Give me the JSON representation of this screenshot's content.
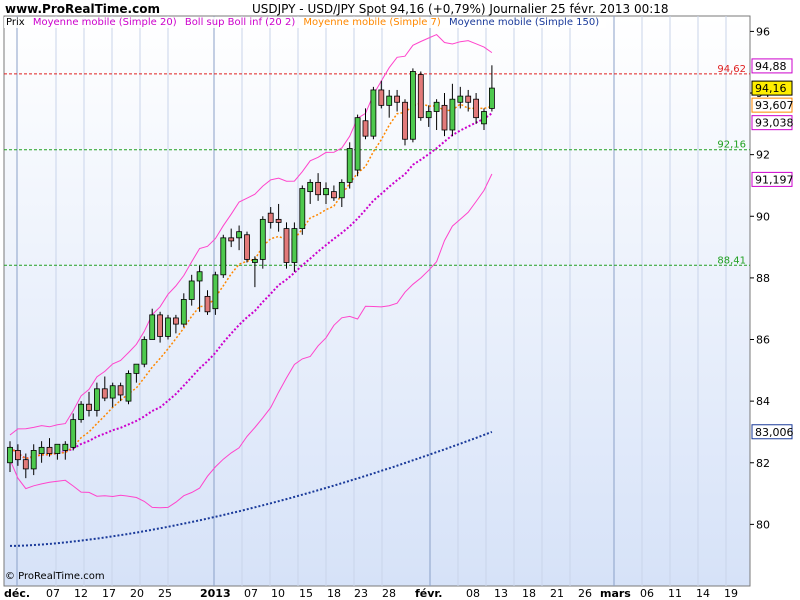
{
  "header": {
    "site": "www.ProRealTime.com",
    "title": "USDJPY - USD/JPY Spot    94,16 (+0,79%)    Journalier  25 févr. 2013 00:18"
  },
  "legend": {
    "items": [
      {
        "label": "Prix",
        "color": "#000000"
      },
      {
        "label": "Moyenne mobile (Simple 20)",
        "color": "#cc00cc"
      },
      {
        "label": "Boll sup Boll inf (20 2)",
        "color": "#cc00cc"
      },
      {
        "label": "Moyenne mobile (Simple 7)",
        "color": "#ff8800"
      },
      {
        "label": "Moyenne mobile (Simple 150)",
        "color": "#1a3a9a"
      }
    ]
  },
  "copyright": "© ProRealTime.com",
  "chart_data": {
    "type": "candlestick",
    "ylim": [
      78,
      96.5
    ],
    "y_ticks": [
      80,
      82,
      84,
      86,
      88,
      90,
      92,
      94,
      96
    ],
    "x_labels": [
      "déc.",
      "07",
      "12",
      "17",
      "20",
      "25",
      "2013",
      "07",
      "10",
      "15",
      "18",
      "23",
      "28",
      "févr.",
      "08",
      "13",
      "18",
      "21",
      "26",
      "mars",
      "06",
      "11",
      "14",
      "19"
    ],
    "candles": [
      {
        "o": 82.0,
        "h": 82.7,
        "l": 81.7,
        "c": 82.5
      },
      {
        "o": 82.4,
        "h": 82.6,
        "l": 81.9,
        "c": 82.1
      },
      {
        "o": 82.1,
        "h": 82.3,
        "l": 81.5,
        "c": 81.8
      },
      {
        "o": 81.8,
        "h": 82.6,
        "l": 81.6,
        "c": 82.4
      },
      {
        "o": 82.3,
        "h": 82.7,
        "l": 82.0,
        "c": 82.5
      },
      {
        "o": 82.5,
        "h": 82.8,
        "l": 82.2,
        "c": 82.3
      },
      {
        "o": 82.3,
        "h": 82.6,
        "l": 82.1,
        "c": 82.6
      },
      {
        "o": 82.4,
        "h": 82.7,
        "l": 82.1,
        "c": 82.6
      },
      {
        "o": 82.5,
        "h": 83.6,
        "l": 82.4,
        "c": 83.4
      },
      {
        "o": 83.4,
        "h": 84.0,
        "l": 83.3,
        "c": 83.9
      },
      {
        "o": 83.9,
        "h": 84.3,
        "l": 83.5,
        "c": 83.7
      },
      {
        "o": 83.7,
        "h": 84.6,
        "l": 83.5,
        "c": 84.4
      },
      {
        "o": 84.4,
        "h": 84.8,
        "l": 84.0,
        "c": 84.1
      },
      {
        "o": 84.1,
        "h": 84.6,
        "l": 83.8,
        "c": 84.5
      },
      {
        "o": 84.5,
        "h": 84.6,
        "l": 84.0,
        "c": 84.2
      },
      {
        "o": 84.0,
        "h": 85.0,
        "l": 83.9,
        "c": 84.9
      },
      {
        "o": 84.9,
        "h": 85.2,
        "l": 84.6,
        "c": 85.2
      },
      {
        "o": 85.2,
        "h": 86.1,
        "l": 85.1,
        "c": 86.0
      },
      {
        "o": 86.0,
        "h": 87.0,
        "l": 86.0,
        "c": 86.8
      },
      {
        "o": 86.8,
        "h": 86.9,
        "l": 85.9,
        "c": 86.1
      },
      {
        "o": 86.1,
        "h": 86.8,
        "l": 86.0,
        "c": 86.7
      },
      {
        "o": 86.7,
        "h": 86.8,
        "l": 86.2,
        "c": 86.5
      },
      {
        "o": 86.5,
        "h": 87.5,
        "l": 86.4,
        "c": 87.3
      },
      {
        "o": 87.3,
        "h": 88.1,
        "l": 87.1,
        "c": 87.9
      },
      {
        "o": 87.9,
        "h": 88.4,
        "l": 86.9,
        "c": 88.2
      },
      {
        "o": 87.4,
        "h": 87.6,
        "l": 86.8,
        "c": 86.9
      },
      {
        "o": 87.0,
        "h": 88.2,
        "l": 86.8,
        "c": 88.1
      },
      {
        "o": 88.1,
        "h": 89.4,
        "l": 88.0,
        "c": 89.3
      },
      {
        "o": 89.3,
        "h": 89.6,
        "l": 89.0,
        "c": 89.2
      },
      {
        "o": 89.3,
        "h": 89.7,
        "l": 88.9,
        "c": 89.5
      },
      {
        "o": 89.4,
        "h": 89.5,
        "l": 88.5,
        "c": 88.6
      },
      {
        "o": 88.5,
        "h": 88.7,
        "l": 87.7,
        "c": 88.6
      },
      {
        "o": 88.6,
        "h": 90.0,
        "l": 88.3,
        "c": 89.9
      },
      {
        "o": 90.1,
        "h": 90.3,
        "l": 89.6,
        "c": 89.8
      },
      {
        "o": 89.9,
        "h": 90.4,
        "l": 89.5,
        "c": 89.8
      },
      {
        "o": 89.6,
        "h": 89.8,
        "l": 88.3,
        "c": 88.5
      },
      {
        "o": 88.5,
        "h": 89.8,
        "l": 88.2,
        "c": 89.6
      },
      {
        "o": 89.6,
        "h": 91.0,
        "l": 89.4,
        "c": 90.9
      },
      {
        "o": 90.8,
        "h": 91.2,
        "l": 90.4,
        "c": 91.1
      },
      {
        "o": 91.1,
        "h": 91.4,
        "l": 90.5,
        "c": 90.7
      },
      {
        "o": 90.7,
        "h": 91.1,
        "l": 90.4,
        "c": 90.9
      },
      {
        "o": 90.8,
        "h": 91.0,
        "l": 90.5,
        "c": 90.6
      },
      {
        "o": 90.6,
        "h": 91.2,
        "l": 90.3,
        "c": 91.1
      },
      {
        "o": 91.1,
        "h": 92.4,
        "l": 90.9,
        "c": 92.2
      },
      {
        "o": 91.5,
        "h": 93.3,
        "l": 91.3,
        "c": 93.2
      },
      {
        "o": 93.1,
        "h": 93.5,
        "l": 92.5,
        "c": 92.6
      },
      {
        "o": 92.6,
        "h": 94.2,
        "l": 92.5,
        "c": 94.1
      },
      {
        "o": 94.1,
        "h": 94.4,
        "l": 93.5,
        "c": 93.6
      },
      {
        "o": 93.6,
        "h": 94.1,
        "l": 93.2,
        "c": 93.9
      },
      {
        "o": 93.9,
        "h": 94.1,
        "l": 93.4,
        "c": 93.7
      },
      {
        "o": 93.7,
        "h": 93.8,
        "l": 92.3,
        "c": 92.5
      },
      {
        "o": 92.5,
        "h": 94.8,
        "l": 92.4,
        "c": 94.7
      },
      {
        "o": 94.6,
        "h": 94.7,
        "l": 93.1,
        "c": 93.2
      },
      {
        "o": 93.2,
        "h": 93.6,
        "l": 92.9,
        "c": 93.4
      },
      {
        "o": 93.4,
        "h": 93.8,
        "l": 92.8,
        "c": 93.7
      },
      {
        "o": 93.6,
        "h": 94.0,
        "l": 92.6,
        "c": 92.8
      },
      {
        "o": 92.8,
        "h": 94.3,
        "l": 92.6,
        "c": 93.8
      },
      {
        "o": 93.7,
        "h": 94.2,
        "l": 93.5,
        "c": 93.9
      },
      {
        "o": 93.9,
        "h": 94.1,
        "l": 93.4,
        "c": 93.7
      },
      {
        "o": 93.8,
        "h": 94.0,
        "l": 93.0,
        "c": 93.2
      },
      {
        "o": 93.0,
        "h": 93.5,
        "l": 92.8,
        "c": 93.4
      },
      {
        "o": 93.5,
        "h": 94.9,
        "l": 93.4,
        "c": 94.16
      }
    ],
    "levels": [
      {
        "value": 94.62,
        "label": "94,62",
        "color": "#e02020"
      },
      {
        "value": 92.16,
        "label": "92,16",
        "color": "#20a020"
      },
      {
        "value": 88.41,
        "label": "88,41",
        "color": "#20a020"
      }
    ],
    "value_tags": [
      {
        "value": 94.88,
        "label": "94,88",
        "color": "#cc00cc",
        "bg": "#ffffff"
      },
      {
        "value": 94.16,
        "label": "94,16",
        "color": "#000000",
        "bg": "#ffee00"
      },
      {
        "value": 93.607,
        "label": "93,607",
        "color": "#ff8800",
        "bg": "#ffffff"
      },
      {
        "value": 93.038,
        "label": "93,038",
        "color": "#cc00cc",
        "bg": "#ffffff"
      },
      {
        "value": 91.197,
        "label": "91,197",
        "color": "#cc00cc",
        "bg": "#ffffff"
      },
      {
        "value": 83.006,
        "label": "83,006",
        "color": "#1a3a9a",
        "bg": "#ffffff"
      }
    ],
    "colors": {
      "up": "#4ec94e",
      "down": "#e27a7a",
      "sma20": "#cc00cc",
      "sma7": "#ff8800",
      "sma150": "#1a3a9a",
      "boll": "#ff44cc"
    }
  }
}
